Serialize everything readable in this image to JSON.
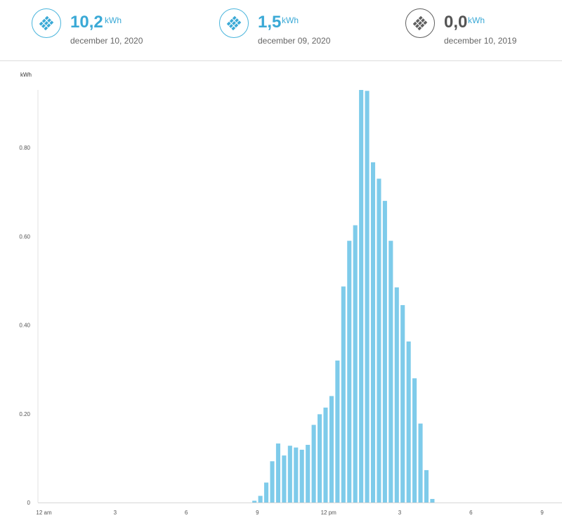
{
  "summary": [
    {
      "value": "10,2",
      "unit": "kWh",
      "date": "december 10, 2020",
      "color": "#3aa9d6",
      "icon": "solar-panel-icon"
    },
    {
      "value": "1,5",
      "unit": "kWh",
      "date": "december 09, 2020",
      "color": "#3aa9d6",
      "icon": "solar-panel-icon"
    },
    {
      "value": "0,0",
      "unit": "kWh",
      "date": "december 10, 2019",
      "color": "#555555",
      "icon": "solar-panel-icon"
    }
  ],
  "chart_data": {
    "type": "bar",
    "ylabel": "kWh",
    "ylim": [
      0,
      0.93
    ],
    "yticks": [
      "0",
      "0.20",
      "0.40",
      "0.60",
      "0.80"
    ],
    "ytick_values": [
      0,
      0.2,
      0.4,
      0.6,
      0.8
    ],
    "xticks": [
      "12 am",
      "3",
      "6",
      "9",
      "12 pm",
      "3",
      "6",
      "9"
    ],
    "xtick_hours": [
      0,
      3,
      6,
      9,
      12,
      15,
      18,
      21
    ],
    "x_interval_minutes": 15,
    "bar_color": "#7ecbea",
    "grid": false,
    "x": [
      "08:45",
      "09:00",
      "09:15",
      "09:30",
      "09:45",
      "10:00",
      "10:15",
      "10:30",
      "10:45",
      "11:00",
      "11:15",
      "11:30",
      "11:45",
      "12:00",
      "12:15",
      "12:30",
      "12:45",
      "13:00",
      "13:15",
      "13:30",
      "13:45",
      "14:00",
      "14:15",
      "14:30",
      "14:45",
      "15:00",
      "15:15",
      "15:30",
      "15:45",
      "16:00",
      "16:15"
    ],
    "values": [
      0.004,
      0.015,
      0.045,
      0.093,
      0.133,
      0.106,
      0.128,
      0.124,
      0.119,
      0.13,
      0.175,
      0.199,
      0.214,
      0.24,
      0.32,
      0.487,
      0.59,
      0.625,
      0.93,
      0.928,
      0.767,
      0.73,
      0.68,
      0.59,
      0.485,
      0.445,
      0.363,
      0.28,
      0.178,
      0.073,
      0.008
    ]
  }
}
